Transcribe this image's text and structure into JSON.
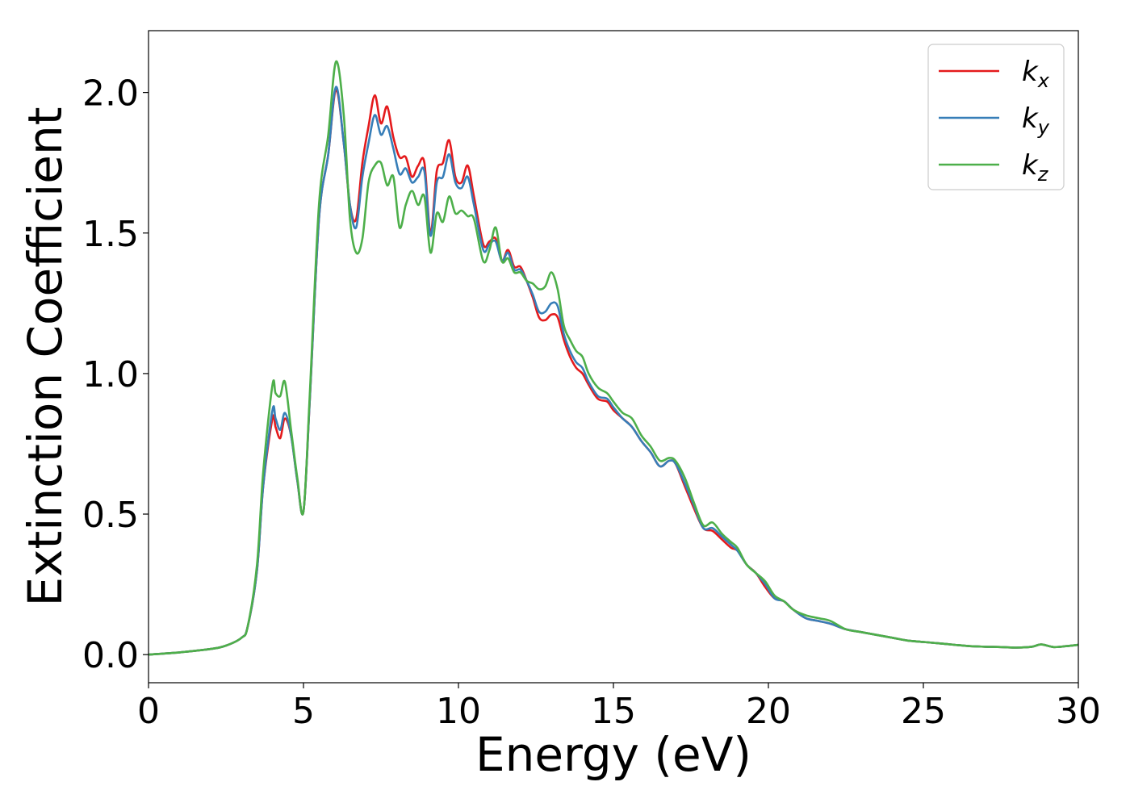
{
  "chart_data": {
    "type": "line",
    "xlabel": "Energy (eV)",
    "ylabel": "Extinction Coefficient",
    "xlim": [
      0,
      30
    ],
    "ylim": [
      -0.1,
      2.22
    ],
    "xticks": [
      0,
      5,
      10,
      15,
      20,
      25,
      30
    ],
    "xtick_labels": [
      "0",
      "5",
      "10",
      "15",
      "20",
      "25",
      "30"
    ],
    "yticks": [
      0.0,
      0.5,
      1.0,
      1.5,
      2.0
    ],
    "ytick_labels": [
      "0.0",
      "0.5",
      "1.0",
      "1.5",
      "2.0"
    ],
    "grid": false,
    "legend_position": "top-right",
    "series": [
      {
        "name": "k",
        "subscript": "x",
        "color": "#e41a1c",
        "x": [
          0,
          1,
          2,
          2.5,
          3,
          3.2,
          3.5,
          3.7,
          4.0,
          4.1,
          4.25,
          4.4,
          4.6,
          4.8,
          5.0,
          5.2,
          5.5,
          5.8,
          6.05,
          6.3,
          6.5,
          6.7,
          6.9,
          7.1,
          7.3,
          7.5,
          7.7,
          7.9,
          8.1,
          8.3,
          8.5,
          8.7,
          8.9,
          9.1,
          9.3,
          9.5,
          9.7,
          9.9,
          10.1,
          10.3,
          10.5,
          10.8,
          11.0,
          11.2,
          11.4,
          11.6,
          11.8,
          12.0,
          12.2,
          12.4,
          12.6,
          12.8,
          13.0,
          13.2,
          13.4,
          13.6,
          13.8,
          14.0,
          14.2,
          14.5,
          14.8,
          15.0,
          15.3,
          15.6,
          15.9,
          16.2,
          16.5,
          16.8,
          17.0,
          17.3,
          17.6,
          17.9,
          18.2,
          18.5,
          18.8,
          19.0,
          19.3,
          19.6,
          19.9,
          20.2,
          20.5,
          20.8,
          21.2,
          21.6,
          22.0,
          22.5,
          23.0,
          23.5,
          24.0,
          24.5,
          25.0,
          25.5,
          26.0,
          26.5,
          27.0,
          27.5,
          28.0,
          28.5,
          28.8,
          29.2,
          29.6,
          30.0
        ],
        "y": [
          0.0,
          0.008,
          0.02,
          0.032,
          0.06,
          0.1,
          0.3,
          0.6,
          0.84,
          0.81,
          0.77,
          0.84,
          0.78,
          0.62,
          0.51,
          0.9,
          1.55,
          1.78,
          2.01,
          1.82,
          1.6,
          1.55,
          1.75,
          1.88,
          1.99,
          1.89,
          1.95,
          1.84,
          1.77,
          1.77,
          1.7,
          1.74,
          1.75,
          1.5,
          1.72,
          1.75,
          1.83,
          1.7,
          1.68,
          1.74,
          1.63,
          1.46,
          1.47,
          1.48,
          1.4,
          1.44,
          1.38,
          1.38,
          1.33,
          1.27,
          1.2,
          1.19,
          1.21,
          1.2,
          1.12,
          1.06,
          1.02,
          1.0,
          0.96,
          0.91,
          0.9,
          0.87,
          0.84,
          0.81,
          0.76,
          0.72,
          0.67,
          0.69,
          0.68,
          0.6,
          0.52,
          0.45,
          0.44,
          0.41,
          0.38,
          0.37,
          0.32,
          0.29,
          0.24,
          0.2,
          0.19,
          0.16,
          0.13,
          0.12,
          0.11,
          0.09,
          0.08,
          0.07,
          0.06,
          0.05,
          0.045,
          0.04,
          0.035,
          0.03,
          0.028,
          0.027,
          0.025,
          0.028,
          0.036,
          0.027,
          0.03,
          0.035
        ]
      },
      {
        "name": "k",
        "subscript": "y",
        "color": "#377eb8",
        "x": [
          0,
          1,
          2,
          2.5,
          3,
          3.2,
          3.5,
          3.7,
          4.0,
          4.1,
          4.25,
          4.4,
          4.6,
          4.8,
          5.0,
          5.2,
          5.5,
          5.8,
          6.05,
          6.3,
          6.5,
          6.7,
          6.9,
          7.1,
          7.3,
          7.5,
          7.7,
          7.9,
          8.1,
          8.3,
          8.5,
          8.7,
          8.9,
          9.1,
          9.3,
          9.5,
          9.7,
          9.9,
          10.1,
          10.3,
          10.5,
          10.8,
          11.0,
          11.2,
          11.4,
          11.6,
          11.8,
          12.0,
          12.2,
          12.4,
          12.6,
          12.8,
          13.0,
          13.2,
          13.4,
          13.6,
          13.8,
          14.0,
          14.2,
          14.5,
          14.8,
          15.0,
          15.3,
          15.6,
          15.9,
          16.2,
          16.5,
          16.8,
          17.0,
          17.3,
          17.6,
          17.9,
          18.2,
          18.5,
          18.8,
          19.0,
          19.3,
          19.6,
          19.9,
          20.2,
          20.5,
          20.8,
          21.2,
          21.6,
          22.0,
          22.5,
          23.0,
          23.5,
          24.0,
          24.5,
          25.0,
          25.5,
          26.0,
          26.5,
          27.0,
          27.5,
          28.0,
          28.5,
          28.8,
          29.2,
          29.6,
          30.0
        ],
        "y": [
          0.0,
          0.008,
          0.02,
          0.032,
          0.06,
          0.1,
          0.3,
          0.6,
          0.87,
          0.84,
          0.8,
          0.86,
          0.78,
          0.62,
          0.51,
          0.9,
          1.55,
          1.78,
          2.02,
          1.82,
          1.6,
          1.52,
          1.7,
          1.82,
          1.92,
          1.85,
          1.88,
          1.8,
          1.71,
          1.73,
          1.68,
          1.7,
          1.72,
          1.49,
          1.68,
          1.7,
          1.78,
          1.68,
          1.66,
          1.7,
          1.6,
          1.44,
          1.46,
          1.47,
          1.4,
          1.43,
          1.37,
          1.37,
          1.33,
          1.28,
          1.22,
          1.22,
          1.25,
          1.24,
          1.14,
          1.08,
          1.04,
          1.02,
          0.97,
          0.92,
          0.91,
          0.88,
          0.84,
          0.81,
          0.76,
          0.72,
          0.67,
          0.69,
          0.68,
          0.61,
          0.53,
          0.45,
          0.45,
          0.42,
          0.39,
          0.37,
          0.32,
          0.29,
          0.25,
          0.2,
          0.19,
          0.16,
          0.13,
          0.12,
          0.11,
          0.09,
          0.08,
          0.07,
          0.06,
          0.05,
          0.045,
          0.04,
          0.035,
          0.03,
          0.028,
          0.027,
          0.025,
          0.028,
          0.036,
          0.027,
          0.03,
          0.035
        ]
      },
      {
        "name": "k",
        "subscript": "z",
        "color": "#4daf4a",
        "x": [
          0,
          1,
          2,
          2.5,
          3,
          3.2,
          3.5,
          3.7,
          4.0,
          4.1,
          4.25,
          4.4,
          4.6,
          4.8,
          5.0,
          5.2,
          5.5,
          5.8,
          6.05,
          6.3,
          6.5,
          6.7,
          6.9,
          7.1,
          7.3,
          7.5,
          7.7,
          7.9,
          8.1,
          8.3,
          8.5,
          8.7,
          8.9,
          9.1,
          9.3,
          9.5,
          9.7,
          9.9,
          10.1,
          10.3,
          10.5,
          10.8,
          11.0,
          11.2,
          11.4,
          11.6,
          11.8,
          12.0,
          12.2,
          12.4,
          12.6,
          12.8,
          13.0,
          13.2,
          13.4,
          13.6,
          13.8,
          14.0,
          14.2,
          14.5,
          14.8,
          15.0,
          15.3,
          15.6,
          15.9,
          16.2,
          16.5,
          16.8,
          17.0,
          17.3,
          17.6,
          17.9,
          18.2,
          18.5,
          18.8,
          19.0,
          19.3,
          19.6,
          19.9,
          20.2,
          20.5,
          20.8,
          21.2,
          21.6,
          22.0,
          22.5,
          23.0,
          23.5,
          24.0,
          24.5,
          25.0,
          25.5,
          26.0,
          26.5,
          27.0,
          27.5,
          28.0,
          28.5,
          28.8,
          29.2,
          29.6,
          30.0
        ],
        "y": [
          0.0,
          0.008,
          0.02,
          0.032,
          0.06,
          0.1,
          0.32,
          0.65,
          0.96,
          0.93,
          0.92,
          0.97,
          0.8,
          0.63,
          0.51,
          0.92,
          1.6,
          1.85,
          2.11,
          1.92,
          1.55,
          1.43,
          1.48,
          1.68,
          1.74,
          1.75,
          1.67,
          1.7,
          1.52,
          1.6,
          1.65,
          1.6,
          1.63,
          1.43,
          1.57,
          1.54,
          1.63,
          1.57,
          1.58,
          1.56,
          1.55,
          1.4,
          1.44,
          1.52,
          1.4,
          1.41,
          1.36,
          1.36,
          1.33,
          1.32,
          1.3,
          1.31,
          1.36,
          1.3,
          1.17,
          1.12,
          1.08,
          1.06,
          1.0,
          0.95,
          0.93,
          0.9,
          0.86,
          0.84,
          0.78,
          0.74,
          0.69,
          0.7,
          0.69,
          0.63,
          0.54,
          0.46,
          0.47,
          0.43,
          0.4,
          0.38,
          0.32,
          0.29,
          0.26,
          0.21,
          0.19,
          0.16,
          0.14,
          0.13,
          0.12,
          0.09,
          0.08,
          0.07,
          0.06,
          0.05,
          0.045,
          0.04,
          0.035,
          0.03,
          0.028,
          0.027,
          0.025,
          0.028,
          0.036,
          0.027,
          0.03,
          0.035
        ]
      }
    ]
  }
}
